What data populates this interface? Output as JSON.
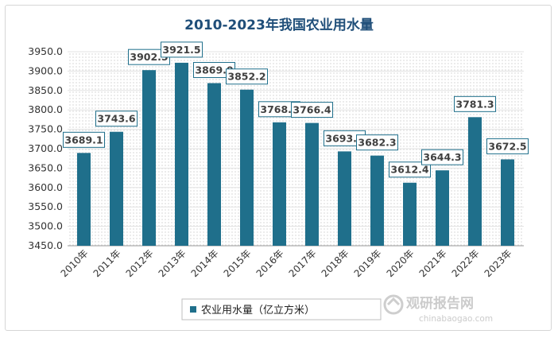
{
  "chart_data": {
    "type": "bar",
    "title": "2010-2023年我国农业用水量",
    "categories": [
      "2010年",
      "2011年",
      "2012年",
      "2013年",
      "2014年",
      "2015年",
      "2016年",
      "2017年",
      "2018年",
      "2019年",
      "2020年",
      "2021年",
      "2022年",
      "2023年"
    ],
    "series": [
      {
        "name": "农业用水量（亿立方米）",
        "values": [
          3689.1,
          3743.6,
          3902.5,
          3921.5,
          3869.0,
          3852.2,
          3768.0,
          3766.4,
          3693.1,
          3682.3,
          3612.4,
          3644.3,
          3781.3,
          3672.5
        ]
      }
    ],
    "data_labels": [
      "3689.1",
      "3743.6",
      "3902.5",
      "3921.5",
      "3869.0",
      "3852.2",
      "3768.0",
      "3766.4",
      "3693.1",
      "3682.3",
      "3612.4",
      "3644.3",
      "3781.3",
      "3672.5"
    ],
    "ylim": [
      3450,
      3950
    ],
    "yticks": [
      "3450.0",
      "3500.0",
      "3550.0",
      "3600.0",
      "3650.0",
      "3700.0",
      "3750.0",
      "3800.0",
      "3850.0",
      "3900.0",
      "3950.0"
    ],
    "grid": true,
    "legend_position": "bottom",
    "bar_color": "#1f6f8b"
  },
  "watermark": {
    "brand_cn": "观研报告网",
    "brand_url": "chinabaogao.com"
  }
}
